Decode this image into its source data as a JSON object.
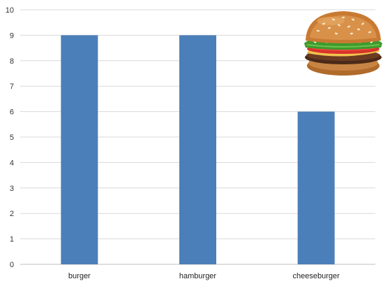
{
  "chart_data": {
    "type": "bar",
    "categories": [
      "burger",
      "hamburger",
      "cheeseburger"
    ],
    "values": [
      9,
      9,
      6
    ],
    "title": "",
    "xlabel": "",
    "ylabel": "",
    "ylim": [
      0,
      10
    ],
    "yticks": [
      0,
      1,
      2,
      3,
      4,
      5,
      6,
      7,
      8,
      9,
      10
    ],
    "grid": true,
    "legend": "none"
  },
  "colors": {
    "bar": "#4b7fb9",
    "grid": "#d9d9d9",
    "axis": "#bfbfbf"
  },
  "image": {
    "icon": "burger-image"
  }
}
